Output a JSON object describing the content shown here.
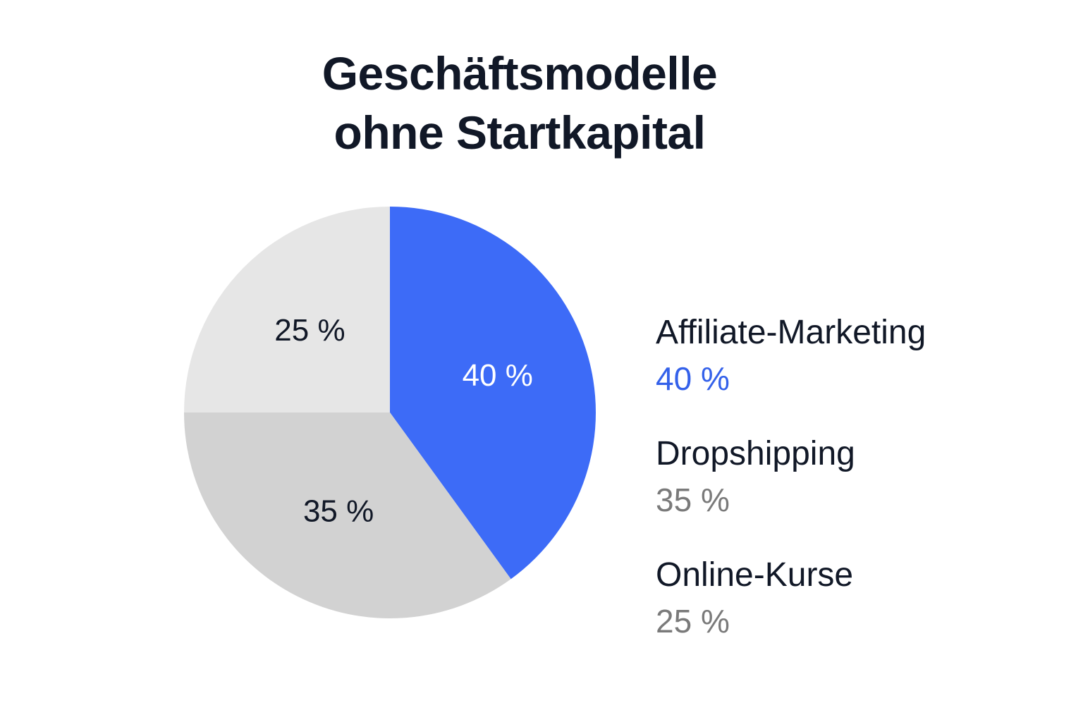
{
  "chart_data": {
    "type": "pie",
    "title": [
      "Geschäftsmodelle",
      "ohne Startkapital"
    ],
    "slices": [
      {
        "label": "Affiliate-Marketing",
        "value": 40,
        "display": "40 %",
        "slice_label": "40 %",
        "color": "#3d6bf7",
        "text_color": "#ffffff",
        "legend_value_color": "#3461ea"
      },
      {
        "label": "Dropshipping",
        "value": 35,
        "display": "35 %",
        "slice_label": "35 %",
        "color": "#d2d2d2",
        "text_color": "#111827",
        "legend_value_color": "#7a7a7a"
      },
      {
        "label": "Online-Kurse",
        "value": 25,
        "display": "25 %",
        "slice_label": "25 %",
        "color": "#e6e6e6",
        "text_color": "#111827",
        "legend_value_color": "#7a7a7a"
      }
    ],
    "legend_position": "right"
  }
}
